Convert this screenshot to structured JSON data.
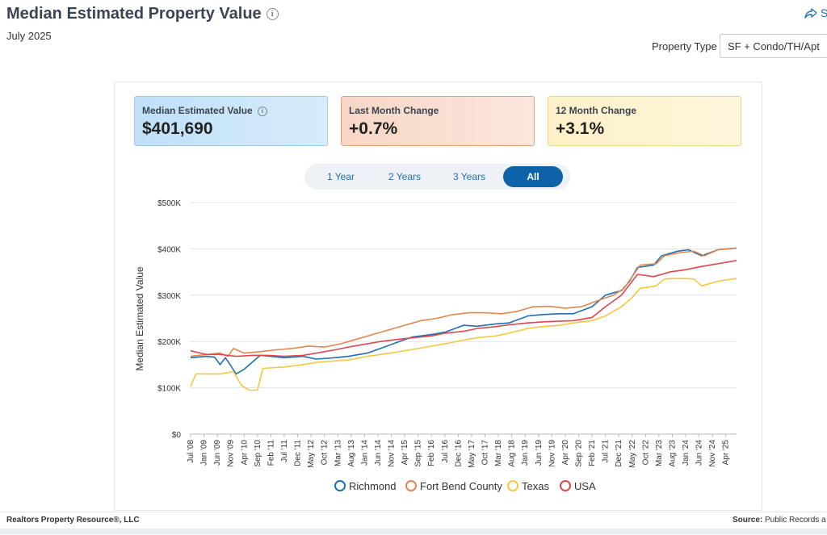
{
  "header": {
    "title": "Median Estimated Property Value",
    "subtitle": "July 2025",
    "share_label": "S",
    "property_type_label": "Property Type",
    "property_type_value": "SF + Condo/TH/Apt"
  },
  "cards": [
    {
      "label": "Median Estimated Value",
      "value": "$401,690",
      "color": "#bfe0f8"
    },
    {
      "label": "Last Month Change",
      "value": "+0.7%",
      "color": "#f7d7c7"
    },
    {
      "label": "12 Month Change",
      "value": "+3.1%",
      "color": "#fdf1c7"
    }
  ],
  "tabs": [
    "1 Year",
    "2 Years",
    "3 Years",
    "All"
  ],
  "active_tab": "All",
  "footer": {
    "credit": "Realtors Property Resource®, LLC",
    "source_label": "Source:",
    "source_value": "Public Records a"
  },
  "chart_data": {
    "type": "line",
    "ylabel": "Median Estimated Value",
    "ylim": [
      0,
      500000
    ],
    "y_ticks": [
      "$0",
      "$100K",
      "$200K",
      "$300K",
      "$400K",
      "$500K"
    ],
    "x_ticks": [
      "Jul '08",
      "Jan '09",
      "Jun '09",
      "Nov '09",
      "Apr '10",
      "Sep '10",
      "Feb '11",
      "Jul '11",
      "Dec '11",
      "May '12",
      "Oct '12",
      "Mar '13",
      "Aug '13",
      "Jan '14",
      "Jun '14",
      "Nov '14",
      "Apr '15",
      "Sep '15",
      "Feb '16",
      "Jul '16",
      "Dec '16",
      "May '17",
      "Oct '17",
      "Mar '18",
      "Aug '18",
      "Jan '19",
      "Jun '19",
      "Nov '19",
      "Apr '20",
      "Sep '20",
      "Feb '21",
      "Jul '21",
      "Dec '21",
      "May '22",
      "Oct '22",
      "Mar '23",
      "Aug '23",
      "Jan '24",
      "Jun '24",
      "Nov '24",
      "Apr '25"
    ],
    "x_range": [
      "2008-07",
      "2025-07"
    ],
    "grid": true,
    "legend_position": "bottom",
    "series": [
      {
        "name": "Richmond",
        "color": "#1f6fb5",
        "points": [
          [
            "2008-07",
            165000
          ],
          [
            "2009-01",
            168000
          ],
          [
            "2009-04",
            166000
          ],
          [
            "2009-06",
            150000
          ],
          [
            "2009-08",
            165000
          ],
          [
            "2009-10",
            148000
          ],
          [
            "2009-12",
            130000
          ],
          [
            "2010-03",
            140000
          ],
          [
            "2010-06",
            155000
          ],
          [
            "2010-09",
            170000
          ],
          [
            "2011-01",
            168000
          ],
          [
            "2011-06",
            165000
          ],
          [
            "2012-01",
            168000
          ],
          [
            "2012-06",
            162000
          ],
          [
            "2013-01",
            165000
          ],
          [
            "2013-06",
            168000
          ],
          [
            "2014-01",
            175000
          ],
          [
            "2014-06",
            185000
          ],
          [
            "2015-01",
            200000
          ],
          [
            "2015-06",
            210000
          ],
          [
            "2016-01",
            215000
          ],
          [
            "2016-06",
            220000
          ],
          [
            "2017-01",
            235000
          ],
          [
            "2017-06",
            233000
          ],
          [
            "2018-01",
            238000
          ],
          [
            "2018-06",
            240000
          ],
          [
            "2019-01",
            255000
          ],
          [
            "2019-06",
            258000
          ],
          [
            "2020-01",
            260000
          ],
          [
            "2020-06",
            260000
          ],
          [
            "2021-01",
            275000
          ],
          [
            "2021-06",
            300000
          ],
          [
            "2021-12",
            310000
          ],
          [
            "2022-03",
            330000
          ],
          [
            "2022-06",
            360000
          ],
          [
            "2022-12",
            365000
          ],
          [
            "2023-03",
            385000
          ],
          [
            "2023-09",
            395000
          ],
          [
            "2024-01",
            398000
          ],
          [
            "2024-06",
            385000
          ],
          [
            "2024-12",
            398000
          ],
          [
            "2025-07",
            401690
          ]
        ]
      },
      {
        "name": "Fort Bend County",
        "color": "#e3864d",
        "points": [
          [
            "2008-07",
            168000
          ],
          [
            "2009-01",
            172000
          ],
          [
            "2009-06",
            175000
          ],
          [
            "2009-09",
            168000
          ],
          [
            "2009-11",
            185000
          ],
          [
            "2010-03",
            175000
          ],
          [
            "2010-09",
            178000
          ],
          [
            "2011-03",
            182000
          ],
          [
            "2011-09",
            185000
          ],
          [
            "2012-03",
            190000
          ],
          [
            "2012-09",
            188000
          ],
          [
            "2013-03",
            195000
          ],
          [
            "2013-09",
            205000
          ],
          [
            "2014-03",
            215000
          ],
          [
            "2014-09",
            225000
          ],
          [
            "2015-03",
            235000
          ],
          [
            "2015-09",
            245000
          ],
          [
            "2016-03",
            250000
          ],
          [
            "2016-09",
            258000
          ],
          [
            "2017-03",
            262000
          ],
          [
            "2017-09",
            262000
          ],
          [
            "2018-03",
            260000
          ],
          [
            "2018-09",
            265000
          ],
          [
            "2019-03",
            275000
          ],
          [
            "2019-09",
            276000
          ],
          [
            "2020-03",
            272000
          ],
          [
            "2020-09",
            275000
          ],
          [
            "2021-03",
            288000
          ],
          [
            "2021-09",
            300000
          ],
          [
            "2022-01",
            315000
          ],
          [
            "2022-04",
            340000
          ],
          [
            "2022-07",
            365000
          ],
          [
            "2023-01",
            368000
          ],
          [
            "2023-04",
            385000
          ],
          [
            "2023-10",
            392000
          ],
          [
            "2024-03",
            395000
          ],
          [
            "2024-07",
            385000
          ],
          [
            "2024-12",
            398000
          ],
          [
            "2025-07",
            402000
          ]
        ]
      },
      {
        "name": "Texas",
        "color": "#f5c842",
        "points": [
          [
            "2008-07",
            103000
          ],
          [
            "2008-09",
            130000
          ],
          [
            "2009-06",
            130000
          ],
          [
            "2009-11",
            135000
          ],
          [
            "2010-02",
            105000
          ],
          [
            "2010-05",
            95000
          ],
          [
            "2010-08",
            95000
          ],
          [
            "2010-10",
            142000
          ],
          [
            "2011-06",
            145000
          ],
          [
            "2012-01",
            150000
          ],
          [
            "2012-06",
            155000
          ],
          [
            "2013-01",
            158000
          ],
          [
            "2013-06",
            160000
          ],
          [
            "2014-01",
            168000
          ],
          [
            "2014-06",
            172000
          ],
          [
            "2015-01",
            178000
          ],
          [
            "2015-06",
            183000
          ],
          [
            "2016-01",
            190000
          ],
          [
            "2016-06",
            195000
          ],
          [
            "2017-01",
            203000
          ],
          [
            "2017-06",
            208000
          ],
          [
            "2018-01",
            212000
          ],
          [
            "2018-06",
            218000
          ],
          [
            "2019-01",
            228000
          ],
          [
            "2019-06",
            232000
          ],
          [
            "2020-01",
            235000
          ],
          [
            "2020-06",
            240000
          ],
          [
            "2021-01",
            245000
          ],
          [
            "2021-06",
            255000
          ],
          [
            "2021-12",
            275000
          ],
          [
            "2022-04",
            295000
          ],
          [
            "2022-07",
            315000
          ],
          [
            "2023-01",
            320000
          ],
          [
            "2023-04",
            335000
          ],
          [
            "2023-10",
            336000
          ],
          [
            "2024-03",
            335000
          ],
          [
            "2024-06",
            320000
          ],
          [
            "2024-12",
            330000
          ],
          [
            "2025-07",
            336000
          ]
        ]
      },
      {
        "name": "USA",
        "color": "#e0474c",
        "points": [
          [
            "2008-07",
            180000
          ],
          [
            "2009-01",
            172000
          ],
          [
            "2009-06",
            172000
          ],
          [
            "2009-12",
            168000
          ],
          [
            "2010-06",
            170000
          ],
          [
            "2010-12",
            170000
          ],
          [
            "2011-06",
            168000
          ],
          [
            "2012-01",
            170000
          ],
          [
            "2012-06",
            175000
          ],
          [
            "2013-01",
            182000
          ],
          [
            "2013-06",
            188000
          ],
          [
            "2014-01",
            195000
          ],
          [
            "2014-06",
            200000
          ],
          [
            "2015-01",
            205000
          ],
          [
            "2015-06",
            208000
          ],
          [
            "2016-01",
            212000
          ],
          [
            "2016-06",
            218000
          ],
          [
            "2017-01",
            222000
          ],
          [
            "2017-06",
            228000
          ],
          [
            "2018-01",
            232000
          ],
          [
            "2018-06",
            236000
          ],
          [
            "2019-01",
            240000
          ],
          [
            "2019-06",
            242000
          ],
          [
            "2020-01",
            244000
          ],
          [
            "2020-06",
            245000
          ],
          [
            "2021-01",
            252000
          ],
          [
            "2021-06",
            275000
          ],
          [
            "2021-12",
            300000
          ],
          [
            "2022-06",
            345000
          ],
          [
            "2022-12",
            340000
          ],
          [
            "2023-06",
            350000
          ],
          [
            "2023-12",
            355000
          ],
          [
            "2024-06",
            362000
          ],
          [
            "2024-12",
            368000
          ],
          [
            "2025-07",
            375000
          ]
        ]
      }
    ]
  }
}
